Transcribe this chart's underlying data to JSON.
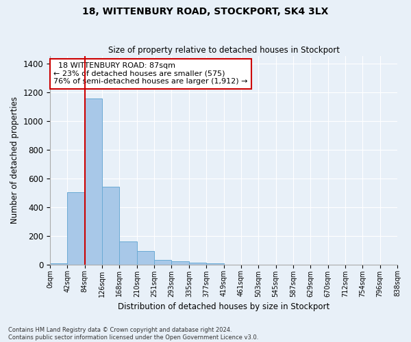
{
  "title": "18, WITTENBURY ROAD, STOCKPORT, SK4 3LX",
  "subtitle": "Size of property relative to detached houses in Stockport",
  "xlabel": "Distribution of detached houses by size in Stockport",
  "ylabel": "Number of detached properties",
  "property_label": "18 WITTENBURY ROAD: 87sqm",
  "pct_smaller": 23,
  "n_smaller": 575,
  "pct_larger_semi": 76,
  "n_larger_semi": 1912,
  "bar_values": [
    10,
    505,
    1155,
    540,
    160,
    95,
    33,
    22,
    15,
    10,
    0,
    0,
    0,
    0,
    0,
    0,
    0,
    0,
    0,
    0
  ],
  "bin_labels": [
    "0sqm",
    "42sqm",
    "84sqm",
    "126sqm",
    "168sqm",
    "210sqm",
    "251sqm",
    "293sqm",
    "335sqm",
    "377sqm",
    "419sqm",
    "461sqm",
    "503sqm",
    "545sqm",
    "587sqm",
    "629sqm",
    "670sqm",
    "712sqm",
    "754sqm",
    "796sqm",
    "838sqm"
  ],
  "bar_color": "#a8c8e8",
  "bar_edge_color": "#6aaad4",
  "vline_color": "#cc0000",
  "annotation_box_edgecolor": "#cc0000",
  "background_color": "#e8f0f8",
  "grid_color": "#ffffff",
  "ylim": [
    0,
    1450
  ],
  "yticks": [
    0,
    200,
    400,
    600,
    800,
    1000,
    1200,
    1400
  ],
  "footer_line1": "Contains HM Land Registry data © Crown copyright and database right 2024.",
  "footer_line2": "Contains public sector information licensed under the Open Government Licence v3.0."
}
